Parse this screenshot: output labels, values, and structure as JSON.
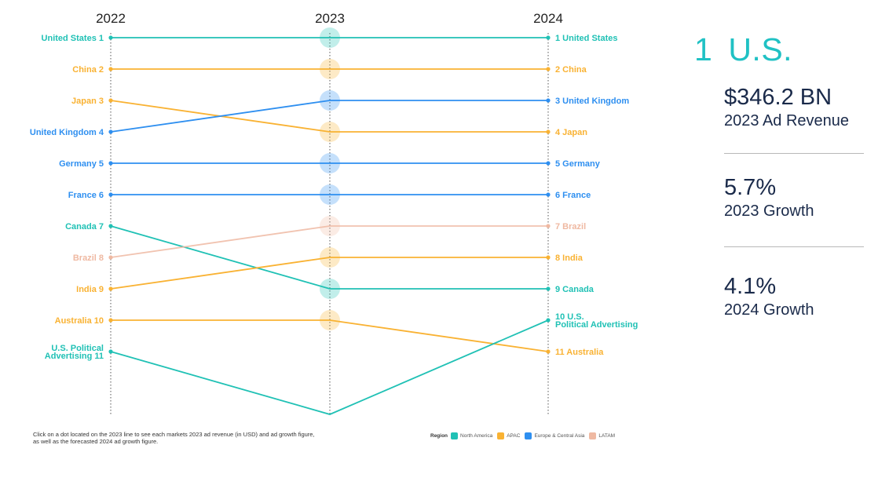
{
  "chart_data": {
    "type": "line",
    "subtype": "bump",
    "years": [
      "2022",
      "2023",
      "2024"
    ],
    "series": [
      {
        "name": "United States",
        "region": "North America",
        "ranks": [
          1,
          1,
          1
        ],
        "label_2022": "United States 1",
        "label_2024": "1 United States"
      },
      {
        "name": "China",
        "region": "APAC",
        "ranks": [
          2,
          2,
          2
        ],
        "label_2022": "China 2",
        "label_2024": "2 China"
      },
      {
        "name": "Japan",
        "region": "APAC",
        "ranks": [
          3,
          4,
          4
        ],
        "label_2022": "Japan 3",
        "label_2024": "4 Japan"
      },
      {
        "name": "United Kingdom",
        "region": "Europe & Central Asia",
        "ranks": [
          4,
          3,
          3
        ],
        "label_2022": "United Kingdom 4",
        "label_2024": "3 United Kingdom"
      },
      {
        "name": "Germany",
        "region": "Europe & Central Asia",
        "ranks": [
          5,
          5,
          5
        ],
        "label_2022": "Germany 5",
        "label_2024": "5 Germany"
      },
      {
        "name": "France",
        "region": "Europe & Central Asia",
        "ranks": [
          6,
          6,
          6
        ],
        "label_2022": "France 6",
        "label_2024": "6 France"
      },
      {
        "name": "Canada",
        "region": "North America",
        "ranks": [
          7,
          9,
          9
        ],
        "label_2022": "Canada 7",
        "label_2024": "9 Canada"
      },
      {
        "name": "Brazil",
        "region": "LATAM",
        "ranks": [
          8,
          7,
          7
        ],
        "label_2022": "Brazil 8",
        "label_2024": "7 Brazil"
      },
      {
        "name": "India",
        "region": "APAC",
        "ranks": [
          9,
          8,
          8
        ],
        "label_2022": "India 9",
        "label_2024": "8 India"
      },
      {
        "name": "Australia",
        "region": "APAC",
        "ranks": [
          10,
          10,
          11
        ],
        "label_2022": "Australia 10",
        "label_2024": "11 Australia"
      },
      {
        "name": "U.S. Political Advertising",
        "region": "North America",
        "ranks": [
          11,
          null,
          10
        ],
        "label_2022": "U.S. Political Advertising 11",
        "label_2024": "10 U.S. Political Advertising"
      }
    ],
    "regions": [
      {
        "name": "North America",
        "color": "#20c1b5"
      },
      {
        "name": "APAC",
        "color": "#f9b233"
      },
      {
        "name": "Europe & Central Asia",
        "color": "#2e8ff0"
      },
      {
        "name": "LATAM",
        "color": "#efb9a2"
      }
    ],
    "legend_title": "Region",
    "legend_position": "bottom"
  },
  "note": "Click on a dot located on the 2023 line to see each markets 2023 ad revenue (in USD) and ad growth figure, as well as the forecasted 2024 ad growth figure.",
  "panel": {
    "rank": "1",
    "market": "U.S.",
    "revenue_value": "$346.2 BN",
    "revenue_label": "2023 Ad Revenue",
    "growth_2023_value": "5.7%",
    "growth_2023_label": "2023 Growth",
    "growth_2024_value": "4.1%",
    "growth_2024_label": "2024 Growth"
  }
}
